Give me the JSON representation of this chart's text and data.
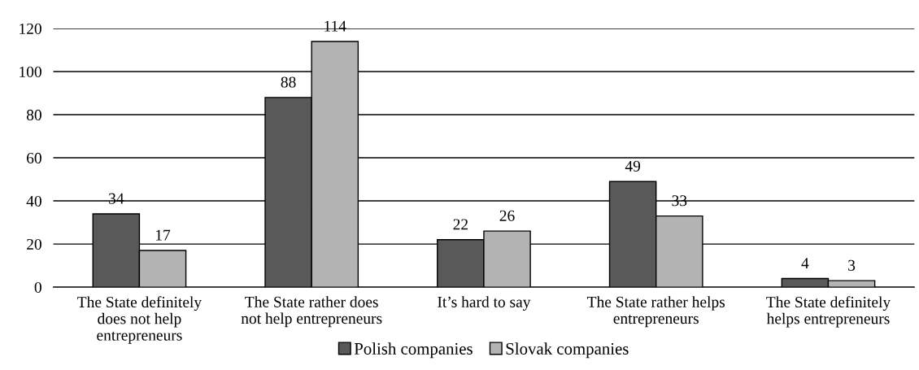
{
  "chart_data": {
    "type": "bar",
    "categories": [
      "The State definitely\ndoes not help\nentrepreneurs",
      "The State rather does\nnot help entrepreneurs",
      "It’s hard to say",
      "The State rather helps\nentrepreneurs",
      "The State definitely\nhelps entrepreneurs"
    ],
    "series": [
      {
        "name": "Polish companies",
        "color": "#595959",
        "values": [
          34,
          88,
          22,
          49,
          4
        ]
      },
      {
        "name": "Slovak companies",
        "color": "#b3b3b3",
        "values": [
          17,
          114,
          26,
          33,
          3
        ]
      }
    ],
    "ylim": [
      0,
      120
    ],
    "yticks": [
      0,
      20,
      40,
      60,
      80,
      100,
      120
    ],
    "grid": "y",
    "legend": "bottom",
    "data_labels": true
  }
}
